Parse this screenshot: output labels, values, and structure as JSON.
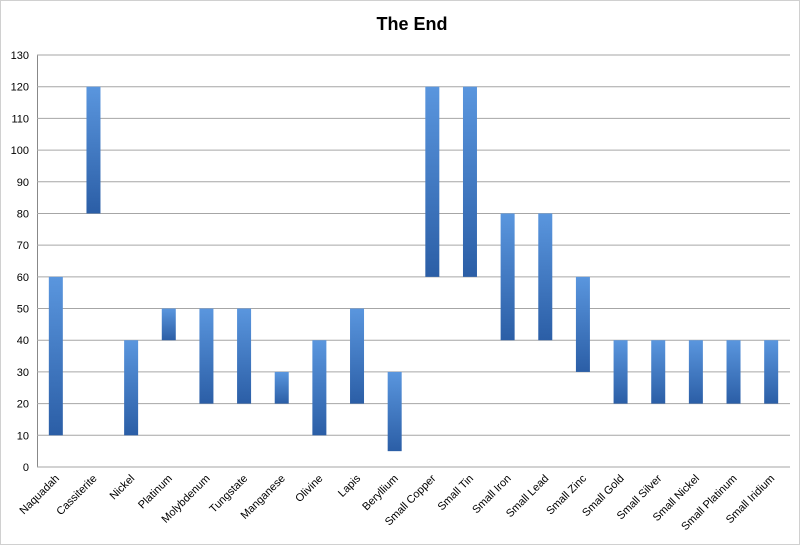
{
  "chart_data": {
    "type": "floating_bar",
    "title": "The End",
    "categories": [
      "Naquadah",
      "Cassiterite",
      "Nickel",
      "Platinum",
      "Molybdenum",
      "Tungstate",
      "Manganese",
      "Olivine",
      "Lapis",
      "Beryllium",
      "Small Copper",
      "Small Tin",
      "Small Iron",
      "Small Lead",
      "Small Zinc",
      "Small Gold",
      "Small Silver",
      "Small Nickel",
      "Small Platinum",
      "Small Iridium"
    ],
    "low": [
      10,
      80,
      10,
      40,
      20,
      20,
      20,
      10,
      20,
      5,
      60,
      60,
      40,
      40,
      30,
      20,
      20,
      20,
      20,
      20
    ],
    "high": [
      60,
      120,
      40,
      50,
      50,
      50,
      30,
      40,
      50,
      30,
      120,
      120,
      80,
      80,
      60,
      40,
      40,
      40,
      40,
      40
    ],
    "gradient": [
      "#5a96de",
      "#2b5ea6"
    ],
    "ylim": [
      0,
      130
    ],
    "yticks": [
      0,
      10,
      20,
      30,
      40,
      50,
      60,
      70,
      80,
      90,
      100,
      110,
      120,
      130
    ],
    "grid": true
  }
}
